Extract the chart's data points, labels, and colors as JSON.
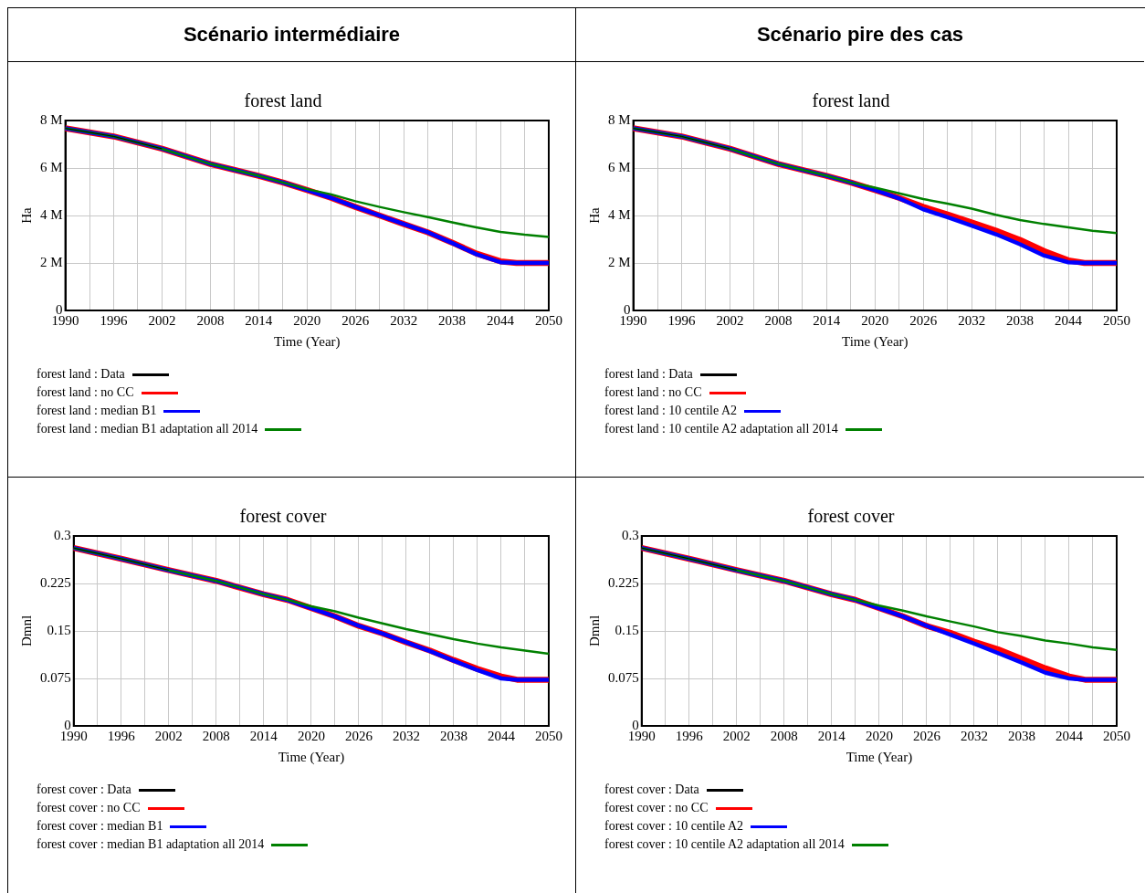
{
  "chart_data": [
    {
      "type": "line",
      "subtitle": "Scénario intermédiaire",
      "title": "forest land",
      "xlabel": "Time (Year)",
      "ylabel": "Ha",
      "xlim": [
        1990,
        2050
      ],
      "xticks": [
        1990,
        {
          "value": 1993,
          "label": null
        },
        1996,
        {
          "value": 1999,
          "label": null
        },
        2002,
        {
          "value": 2005,
          "label": null
        },
        2008,
        {
          "value": 2011,
          "label": null
        },
        2014,
        {
          "value": 2017,
          "label": null
        },
        2020,
        {
          "value": 2023,
          "label": null
        },
        2026,
        {
          "value": 2029,
          "label": null
        },
        2032,
        {
          "value": 2035,
          "label": null
        },
        2038,
        {
          "value": 2041,
          "label": null
        },
        2044,
        {
          "value": 2047,
          "label": null
        },
        2050
      ],
      "ylim": [
        0,
        8000000
      ],
      "yticks": [
        {
          "value": 0,
          "label": "0"
        },
        {
          "value": 2000000,
          "label": "2 M"
        },
        {
          "value": 4000000,
          "label": "4 M"
        },
        {
          "value": 6000000,
          "label": "6 M"
        },
        {
          "value": 8000000,
          "label": "8 M"
        }
      ],
      "grid": true,
      "legend": "bottom",
      "series": [
        {
          "name": "forest land : Data",
          "color": "#000000",
          "x": [
            1990,
            1996,
            2002
          ],
          "values": [
            7670000,
            7330000,
            6810000
          ]
        },
        {
          "name": "forest land : no CC",
          "color": "#ff0000",
          "x": [
            1990,
            1996,
            2002,
            2008,
            2014,
            2017,
            2020,
            2023,
            2026,
            2029,
            2032,
            2035,
            2038,
            2041,
            2044,
            2046,
            2050
          ],
          "values": [
            7670000,
            7330000,
            6810000,
            6170000,
            5670000,
            5390000,
            5070000,
            4740000,
            4360000,
            4000000,
            3640000,
            3290000,
            2860000,
            2400000,
            2070000,
            2000000,
            2000000
          ]
        },
        {
          "name": "forest land : median B1",
          "color": "#0000ff",
          "x": [
            1990,
            1996,
            2002,
            2008,
            2014,
            2017,
            2020,
            2023,
            2026,
            2029,
            2032,
            2035,
            2038,
            2041,
            2044,
            2046,
            2050
          ],
          "values": [
            7670000,
            7330000,
            6810000,
            6170000,
            5670000,
            5390000,
            5070000,
            4740000,
            4360000,
            4000000,
            3640000,
            3290000,
            2840000,
            2370000,
            2030000,
            2000000,
            2000000
          ]
        },
        {
          "name": "forest land : median B1 adaptation all 2014",
          "color": "#008000",
          "x": [
            1990,
            1996,
            2002,
            2008,
            2014,
            2017,
            2020,
            2023,
            2026,
            2029,
            2032,
            2035,
            2038,
            2041,
            2044,
            2047,
            2050
          ],
          "values": [
            7670000,
            7330000,
            6810000,
            6170000,
            5670000,
            5390000,
            5110000,
            4890000,
            4600000,
            4360000,
            4140000,
            3930000,
            3710000,
            3500000,
            3310000,
            3190000,
            3100000
          ]
        }
      ]
    },
    {
      "type": "line",
      "subtitle": "Scénario pire des cas",
      "title": "forest land",
      "xlabel": "Time (Year)",
      "ylabel": "Ha",
      "xlim": [
        1990,
        2050
      ],
      "xticks": [
        1990,
        {
          "value": 1993,
          "label": null
        },
        1996,
        {
          "value": 1999,
          "label": null
        },
        2002,
        {
          "value": 2005,
          "label": null
        },
        2008,
        {
          "value": 2011,
          "label": null
        },
        2014,
        {
          "value": 2017,
          "label": null
        },
        2020,
        {
          "value": 2023,
          "label": null
        },
        2026,
        {
          "value": 2029,
          "label": null
        },
        2032,
        {
          "value": 2035,
          "label": null
        },
        2038,
        {
          "value": 2041,
          "label": null
        },
        2044,
        {
          "value": 2047,
          "label": null
        },
        2050
      ],
      "ylim": [
        0,
        8000000
      ],
      "yticks": [
        {
          "value": 0,
          "label": "0"
        },
        {
          "value": 2000000,
          "label": "2 M"
        },
        {
          "value": 4000000,
          "label": "4 M"
        },
        {
          "value": 6000000,
          "label": "6 M"
        },
        {
          "value": 8000000,
          "label": "8 M"
        }
      ],
      "grid": true,
      "legend": "bottom",
      "series": [
        {
          "name": "forest land : Data",
          "color": "#000000",
          "x": [
            1990,
            1996,
            2002
          ],
          "values": [
            7670000,
            7330000,
            6810000
          ]
        },
        {
          "name": "forest land : no CC",
          "color": "#ff0000",
          "x": [
            1990,
            1996,
            2002,
            2008,
            2014,
            2017,
            2020,
            2023,
            2026,
            2029,
            2032,
            2035,
            2038,
            2041,
            2044,
            2046,
            2050
          ],
          "values": [
            7670000,
            7330000,
            6810000,
            6170000,
            5670000,
            5390000,
            5070000,
            4740000,
            4360000,
            4040000,
            3710000,
            3360000,
            2970000,
            2500000,
            2110000,
            2000000,
            2000000
          ]
        },
        {
          "name": "forest land : 10 centile A2",
          "color": "#0000ff",
          "x": [
            1990,
            1996,
            2002,
            2008,
            2014,
            2017,
            2020,
            2023,
            2026,
            2029,
            2032,
            2035,
            2038,
            2041,
            2044,
            2046,
            2050
          ],
          "values": [
            7670000,
            7330000,
            6810000,
            6170000,
            5670000,
            5390000,
            5070000,
            4720000,
            4260000,
            3930000,
            3570000,
            3210000,
            2790000,
            2310000,
            2030000,
            2000000,
            2000000
          ]
        },
        {
          "name": "forest land : 10 centile A2 adaptation all 2014",
          "color": "#008000",
          "x": [
            1990,
            1996,
            2002,
            2008,
            2014,
            2017,
            2020,
            2023,
            2026,
            2029,
            2032,
            2035,
            2038,
            2041,
            2044,
            2047,
            2050
          ],
          "values": [
            7670000,
            7330000,
            6810000,
            6170000,
            5670000,
            5390000,
            5170000,
            4930000,
            4690000,
            4500000,
            4290000,
            4030000,
            3810000,
            3640000,
            3500000,
            3360000,
            3260000
          ]
        }
      ]
    },
    {
      "type": "line",
      "title": "forest cover",
      "xlabel": "Time (Year)",
      "ylabel": "Dmnl",
      "xlim": [
        1990,
        2050
      ],
      "xticks": [
        1990,
        {
          "value": 1993,
          "label": null
        },
        1996,
        {
          "value": 1999,
          "label": null
        },
        2002,
        {
          "value": 2005,
          "label": null
        },
        2008,
        {
          "value": 2011,
          "label": null
        },
        2014,
        {
          "value": 2017,
          "label": null
        },
        2020,
        {
          "value": 2023,
          "label": null
        },
        2026,
        {
          "value": 2029,
          "label": null
        },
        2032,
        {
          "value": 2035,
          "label": null
        },
        2038,
        {
          "value": 2041,
          "label": null
        },
        2044,
        {
          "value": 2047,
          "label": null
        },
        2050
      ],
      "ylim": [
        0,
        0.3
      ],
      "yticks": [
        0,
        0.075,
        0.15,
        0.225,
        0.3
      ],
      "grid": true,
      "legend": "bottom",
      "series": [
        {
          "name": "forest cover : Data",
          "color": "#000000",
          "x": [
            1990,
            1996,
            2002
          ],
          "values": [
            0.281,
            0.264,
            0.246
          ]
        },
        {
          "name": "forest cover : no CC",
          "color": "#ff0000",
          "x": [
            1990,
            1996,
            2002,
            2008,
            2014,
            2017,
            2020,
            2023,
            2026,
            2029,
            2032,
            2035,
            2038,
            2041,
            2044,
            2046,
            2050
          ],
          "values": [
            0.281,
            0.264,
            0.246,
            0.229,
            0.208,
            0.199,
            0.186,
            0.173,
            0.158,
            0.146,
            0.132,
            0.119,
            0.104,
            0.09,
            0.078,
            0.073,
            0.073
          ]
        },
        {
          "name": "forest cover : median B1",
          "color": "#0000ff",
          "x": [
            1990,
            1996,
            2002,
            2008,
            2014,
            2017,
            2020,
            2023,
            2026,
            2029,
            2032,
            2035,
            2038,
            2041,
            2044,
            2046,
            2050
          ],
          "values": [
            0.281,
            0.264,
            0.246,
            0.229,
            0.208,
            0.199,
            0.186,
            0.173,
            0.158,
            0.146,
            0.132,
            0.118,
            0.103,
            0.088,
            0.075,
            0.073,
            0.073
          ]
        },
        {
          "name": "forest cover : median B1 adaptation all 2014",
          "color": "#008000",
          "x": [
            1990,
            1996,
            2002,
            2008,
            2014,
            2017,
            2020,
            2023,
            2026,
            2029,
            2032,
            2035,
            2038,
            2041,
            2044,
            2047,
            2050
          ],
          "values": [
            0.281,
            0.264,
            0.246,
            0.229,
            0.208,
            0.199,
            0.189,
            0.181,
            0.171,
            0.162,
            0.153,
            0.145,
            0.137,
            0.13,
            0.124,
            0.119,
            0.114
          ]
        }
      ]
    },
    {
      "type": "line",
      "title": "forest cover",
      "xlabel": "Time (Year)",
      "ylabel": "Dmnl",
      "xlim": [
        1990,
        2050
      ],
      "xticks": [
        1990,
        {
          "value": 1993,
          "label": null
        },
        1996,
        {
          "value": 1999,
          "label": null
        },
        2002,
        {
          "value": 2005,
          "label": null
        },
        2008,
        {
          "value": 2011,
          "label": null
        },
        2014,
        {
          "value": 2017,
          "label": null
        },
        2020,
        {
          "value": 2023,
          "label": null
        },
        2026,
        {
          "value": 2029,
          "label": null
        },
        2032,
        {
          "value": 2035,
          "label": null
        },
        2038,
        {
          "value": 2041,
          "label": null
        },
        2044,
        {
          "value": 2047,
          "label": null
        },
        2050
      ],
      "ylim": [
        0,
        0.3
      ],
      "yticks": [
        0,
        0.075,
        0.15,
        0.225,
        0.3
      ],
      "grid": true,
      "legend": "bottom",
      "series": [
        {
          "name": "forest cover : Data",
          "color": "#000000",
          "x": [
            1990,
            1996,
            2002
          ],
          "values": [
            0.281,
            0.264,
            0.246
          ]
        },
        {
          "name": "forest cover : no CC",
          "color": "#ff0000",
          "x": [
            1990,
            1996,
            2002,
            2008,
            2014,
            2017,
            2020,
            2023,
            2026,
            2029,
            2032,
            2035,
            2038,
            2041,
            2044,
            2046,
            2050
          ],
          "values": [
            0.281,
            0.264,
            0.246,
            0.229,
            0.208,
            0.199,
            0.186,
            0.173,
            0.158,
            0.147,
            0.133,
            0.121,
            0.106,
            0.091,
            0.078,
            0.073,
            0.073
          ]
        },
        {
          "name": "forest cover : 10 centile A2",
          "color": "#0000ff",
          "x": [
            1990,
            1996,
            2002,
            2008,
            2014,
            2017,
            2020,
            2023,
            2026,
            2029,
            2032,
            2035,
            2038,
            2041,
            2044,
            2046,
            2050
          ],
          "values": [
            0.281,
            0.264,
            0.246,
            0.229,
            0.208,
            0.199,
            0.186,
            0.173,
            0.158,
            0.144,
            0.13,
            0.115,
            0.1,
            0.084,
            0.075,
            0.073,
            0.073
          ]
        },
        {
          "name": "forest cover : 10 centile A2 adaptation all 2014",
          "color": "#008000",
          "x": [
            1990,
            1996,
            2002,
            2008,
            2014,
            2017,
            2020,
            2023,
            2026,
            2029,
            2032,
            2035,
            2038,
            2041,
            2044,
            2047,
            2050
          ],
          "values": [
            0.281,
            0.264,
            0.246,
            0.229,
            0.208,
            0.199,
            0.19,
            0.182,
            0.173,
            0.165,
            0.157,
            0.148,
            0.142,
            0.135,
            0.13,
            0.124,
            0.12
          ]
        }
      ]
    }
  ]
}
